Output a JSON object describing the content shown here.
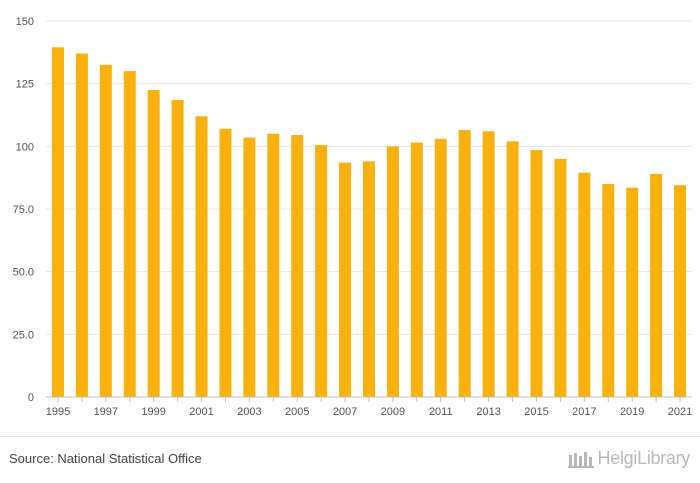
{
  "chart_data": {
    "type": "bar",
    "title": "",
    "xlabel": "",
    "ylabel": "",
    "ylim": [
      0,
      150
    ],
    "yticks": [
      "0",
      "25.0",
      "50.0",
      "75.0",
      "100",
      "125",
      "150"
    ],
    "ytick_values": [
      0,
      25,
      50,
      75,
      100,
      125,
      150
    ],
    "categories": [
      "1995",
      "1996",
      "1997",
      "1998",
      "1999",
      "2000",
      "2001",
      "2002",
      "2003",
      "2004",
      "2005",
      "2006",
      "2007",
      "2008",
      "2009",
      "2010",
      "2011",
      "2012",
      "2013",
      "2014",
      "2015",
      "2016",
      "2017",
      "2018",
      "2019",
      "2020",
      "2021"
    ],
    "xtick_labels": [
      "1995",
      "1997",
      "1999",
      "2001",
      "2003",
      "2005",
      "2007",
      "2009",
      "2011",
      "2013",
      "2015",
      "2017",
      "2019",
      "2021"
    ],
    "values": [
      139.5,
      137,
      132.5,
      130,
      122.5,
      118.5,
      112,
      107,
      103.5,
      105,
      104.5,
      100.5,
      93.5,
      94,
      100,
      101.5,
      103,
      106.5,
      106,
      102,
      98.5,
      95,
      89.5,
      85,
      83.5,
      89,
      84.5
    ],
    "grid": true,
    "bar_color": "#f8b10f"
  },
  "footer": {
    "source": "Source: National Statistical Office",
    "logo_text": "HelgiLibrary"
  }
}
